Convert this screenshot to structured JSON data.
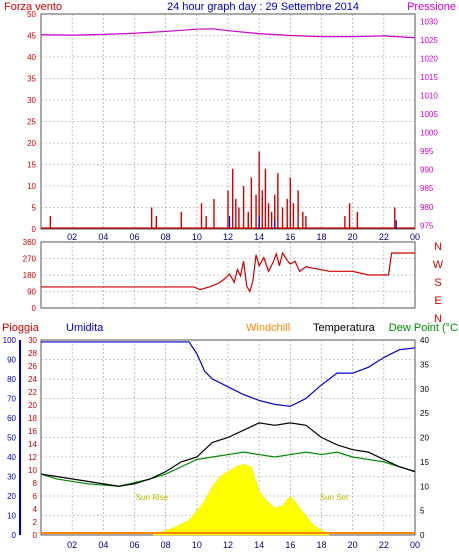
{
  "title": "24 hour graph day : 29 Settembre 2014",
  "colors": {
    "wind": "#cc0000",
    "pressure": "#cc00cc",
    "rain": "#cc0000",
    "humidity": "#0000cc",
    "windchill": "#ff8800",
    "temperature": "#000000",
    "dewpoint": "#008800",
    "sun": "#ffff00",
    "suntext": "#bbbb00",
    "grid": "#9a9a9a"
  },
  "time_ticks": [
    "02",
    "04",
    "06",
    "08",
    "10",
    "12",
    "14",
    "16",
    "18",
    "20",
    "22",
    "00"
  ],
  "chart_data": [
    {
      "type": "bar",
      "legend_left": "Forza vento",
      "legend_right": "Pressione",
      "left_ticks": [
        "0",
        "5",
        "10",
        "15",
        "20",
        "25",
        "30",
        "35",
        "40",
        "45",
        "50"
      ],
      "right_ticks": [
        "975",
        "980",
        "985",
        "990",
        "995",
        "1000",
        "1005",
        "1010",
        "1015",
        "1020",
        "1025",
        "1030"
      ],
      "ylim_wind": [
        0,
        50
      ],
      "ylim_pressure": [
        974,
        1032
      ],
      "pressure": [
        [
          0,
          1026.4
        ],
        [
          2,
          1026.3
        ],
        [
          4,
          1026.5
        ],
        [
          6,
          1026.8
        ],
        [
          8,
          1027.3
        ],
        [
          10,
          1027.9
        ],
        [
          11,
          1028.0
        ],
        [
          12,
          1027.5
        ],
        [
          14,
          1026.7
        ],
        [
          16,
          1026.2
        ],
        [
          18,
          1025.9
        ],
        [
          20,
          1025.9
        ],
        [
          22,
          1026.1
        ],
        [
          24,
          1025.6
        ]
      ],
      "wind": [
        [
          0.6,
          3
        ],
        [
          7.1,
          5
        ],
        [
          7.4,
          3
        ],
        [
          9.0,
          4
        ],
        [
          10.3,
          6
        ],
        [
          10.6,
          3
        ],
        [
          11.1,
          7
        ],
        [
          12.0,
          9
        ],
        [
          12.3,
          14
        ],
        [
          12.5,
          7
        ],
        [
          12.7,
          5
        ],
        [
          13.0,
          10
        ],
        [
          13.3,
          4
        ],
        [
          13.5,
          12
        ],
        [
          13.8,
          8
        ],
        [
          14.0,
          18
        ],
        [
          14.2,
          9
        ],
        [
          14.4,
          14
        ],
        [
          14.6,
          6
        ],
        [
          14.8,
          4
        ],
        [
          15.0,
          8
        ],
        [
          15.2,
          13
        ],
        [
          15.5,
          5
        ],
        [
          15.8,
          7
        ],
        [
          16.0,
          12
        ],
        [
          16.2,
          6
        ],
        [
          16.5,
          9
        ],
        [
          16.8,
          4
        ],
        [
          17.0,
          3
        ],
        [
          19.5,
          3
        ],
        [
          19.8,
          6
        ],
        [
          20.3,
          4
        ],
        [
          22.7,
          5
        ]
      ],
      "gust": [
        [
          12.1,
          3
        ],
        [
          14.0,
          3
        ],
        [
          15.0,
          2
        ],
        [
          22.8,
          2
        ]
      ]
    },
    {
      "type": "line",
      "axis_labels": [
        "N",
        "W",
        "S",
        "E",
        "N"
      ],
      "left_ticks": [
        "360",
        "270",
        "180",
        "90",
        "0"
      ],
      "ylim": [
        0,
        360
      ],
      "direction": [
        [
          0,
          115
        ],
        [
          9.8,
          115
        ],
        [
          10.2,
          100
        ],
        [
          10.8,
          115
        ],
        [
          11.4,
          135
        ],
        [
          11.8,
          160
        ],
        [
          12.1,
          185
        ],
        [
          12.4,
          140
        ],
        [
          12.6,
          210
        ],
        [
          12.8,
          175
        ],
        [
          13.0,
          255
        ],
        [
          13.2,
          120
        ],
        [
          13.4,
          90
        ],
        [
          13.6,
          150
        ],
        [
          13.8,
          290
        ],
        [
          14.0,
          230
        ],
        [
          14.3,
          275
        ],
        [
          14.6,
          200
        ],
        [
          14.9,
          250
        ],
        [
          15.1,
          295
        ],
        [
          15.3,
          230
        ],
        [
          15.5,
          300
        ],
        [
          15.8,
          260
        ],
        [
          16.0,
          240
        ],
        [
          16.3,
          255
        ],
        [
          16.6,
          200
        ],
        [
          17.0,
          225
        ],
        [
          18.5,
          200
        ],
        [
          20.0,
          200
        ],
        [
          21.0,
          180
        ],
        [
          22.3,
          180
        ],
        [
          22.5,
          300
        ],
        [
          24,
          300
        ]
      ]
    },
    {
      "type": "line",
      "labels": {
        "rain": "Pioggia",
        "humidity": "Umidita",
        "windchill": "Windchill",
        "temperature": "Temperatura",
        "dewpoint": "Dew Point (°C"
      },
      "left_ticks": [
        "0",
        "10",
        "20",
        "30",
        "40",
        "50",
        "60",
        "70",
        "80",
        "90",
        "100"
      ],
      "rain_ticks": [
        "0",
        "2",
        "4",
        "6",
        "8",
        "10",
        "12",
        "14",
        "16",
        "18",
        "20",
        "22",
        "24",
        "26",
        "28",
        "30"
      ],
      "right_ticks": [
        "0",
        "5",
        "10",
        "15",
        "20",
        "25",
        "30",
        "35",
        "40"
      ],
      "ylim_humidity": [
        0,
        100
      ],
      "ylim_temperature": [
        0,
        40
      ],
      "sun_rise": "Sun Rise",
      "sun_set": "Sun Set",
      "humidity": [
        [
          0,
          99
        ],
        [
          6,
          99
        ],
        [
          9.5,
          99
        ],
        [
          10.0,
          93
        ],
        [
          10.5,
          84
        ],
        [
          11.0,
          80
        ],
        [
          12.0,
          76
        ],
        [
          13.0,
          72
        ],
        [
          14.0,
          69
        ],
        [
          15.0,
          67
        ],
        [
          16.0,
          66
        ],
        [
          17.0,
          70
        ],
        [
          18.0,
          77
        ],
        [
          19.0,
          83
        ],
        [
          20.0,
          83
        ],
        [
          21.0,
          86
        ],
        [
          22.0,
          91
        ],
        [
          23.0,
          95
        ],
        [
          24,
          96
        ]
      ],
      "temperature": [
        [
          0,
          12.5
        ],
        [
          1,
          12.0
        ],
        [
          3,
          11.0
        ],
        [
          5,
          10.0
        ],
        [
          6,
          10.5
        ],
        [
          7,
          11.5
        ],
        [
          8,
          13.0
        ],
        [
          9,
          15.0
        ],
        [
          10,
          16.0
        ],
        [
          11,
          19.0
        ],
        [
          12,
          20.0
        ],
        [
          13,
          21.5
        ],
        [
          14,
          23.0
        ],
        [
          15,
          22.5
        ],
        [
          16,
          23.0
        ],
        [
          17,
          22.5
        ],
        [
          18,
          20.0
        ],
        [
          19,
          18.5
        ],
        [
          20,
          17.5
        ],
        [
          21,
          17.0
        ],
        [
          22,
          15.5
        ],
        [
          23,
          14.0
        ],
        [
          24,
          13.0
        ]
      ],
      "dewpoint": [
        [
          0,
          12.5
        ],
        [
          1,
          11.5
        ],
        [
          3,
          10.5
        ],
        [
          5,
          10.0
        ],
        [
          7,
          11.5
        ],
        [
          8,
          12.5
        ],
        [
          9,
          14.0
        ],
        [
          10,
          15.5
        ],
        [
          11,
          16.0
        ],
        [
          12,
          16.5
        ],
        [
          13,
          17.0
        ],
        [
          14,
          16.5
        ],
        [
          15,
          16.0
        ],
        [
          16,
          16.5
        ],
        [
          17,
          17.0
        ],
        [
          18,
          16.5
        ],
        [
          19,
          17.0
        ],
        [
          20,
          16.0
        ],
        [
          21,
          15.5
        ],
        [
          22,
          15.0
        ],
        [
          23,
          14.0
        ],
        [
          24,
          13.0
        ]
      ],
      "sun": [
        [
          7.2,
          0
        ],
        [
          8.5,
          1.5
        ],
        [
          9.5,
          3
        ],
        [
          10.5,
          7
        ],
        [
          11.0,
          10
        ],
        [
          11.5,
          12
        ],
        [
          12.0,
          13
        ],
        [
          12.5,
          14
        ],
        [
          13.0,
          14.5
        ],
        [
          13.5,
          14
        ],
        [
          14.0,
          9
        ],
        [
          14.5,
          7
        ],
        [
          15.0,
          5.5
        ],
        [
          15.5,
          6
        ],
        [
          16.0,
          8
        ],
        [
          16.5,
          6
        ],
        [
          17.0,
          4
        ],
        [
          17.5,
          2
        ],
        [
          18.5,
          0
        ]
      ],
      "rain": 0
    }
  ]
}
